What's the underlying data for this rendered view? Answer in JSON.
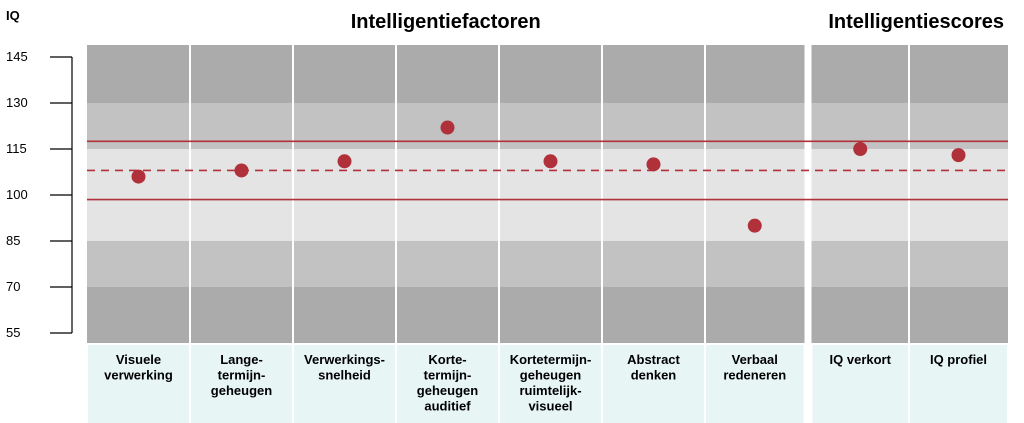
{
  "chart_data": {
    "type": "scatter",
    "ylabel": "IQ",
    "ylim": [
      55,
      145
    ],
    "yticks": [
      55,
      70,
      85,
      100,
      115,
      130,
      145
    ],
    "sections": [
      {
        "title": "Intelligentiefactoren",
        "categories": [
          0,
          1,
          2,
          3,
          4,
          5,
          6
        ]
      },
      {
        "title": "Intelligentiescores",
        "categories": [
          7,
          8
        ]
      }
    ],
    "categories": [
      [
        "Visuele",
        "verwerking"
      ],
      [
        "Lange-",
        "termijn-",
        "geheugen"
      ],
      [
        "Verwerkings-",
        "snelheid"
      ],
      [
        "Korte-",
        "termijn-",
        "geheugen",
        "auditief"
      ],
      [
        "Kortetermijn-",
        "geheugen",
        "ruimtelijk-",
        "visueel"
      ],
      [
        "Abstract",
        "denken"
      ],
      [
        "Verbaal",
        "redeneren"
      ],
      [
        "IQ verkort"
      ],
      [
        "IQ profiel"
      ]
    ],
    "series": [
      {
        "values": [
          106,
          108,
          111,
          122,
          111,
          110,
          90,
          115,
          113
        ],
        "color": "#b0313a"
      }
    ],
    "reference_lines": [
      {
        "value": 117.5,
        "style": "solid",
        "color": "#b0313a"
      },
      {
        "value": 108,
        "style": "dashed",
        "color": "#b0313a"
      },
      {
        "value": 98.5,
        "style": "solid",
        "color": "#b0313a"
      }
    ],
    "bands": [
      {
        "from": 55,
        "to": 70,
        "color": "#ababab"
      },
      {
        "from": 70,
        "to": 85,
        "color": "#c2c2c2"
      },
      {
        "from": 85,
        "to": 115,
        "color": "#e4e4e4"
      },
      {
        "from": 115,
        "to": 130,
        "color": "#c2c2c2"
      },
      {
        "from": 130,
        "to": 145,
        "color": "#ababab"
      }
    ],
    "label_background": "#e8f5f5",
    "grid": true
  }
}
